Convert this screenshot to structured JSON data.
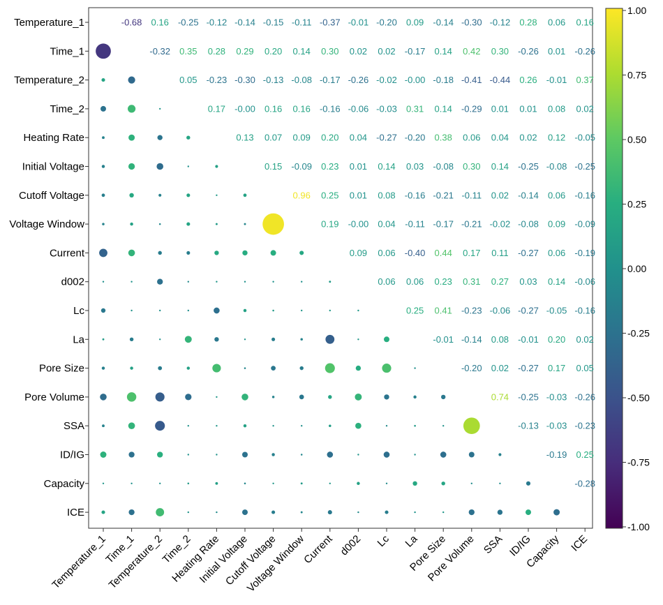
{
  "chart_data": {
    "type": "heatmap",
    "title": "",
    "variables": [
      "Temperature_1",
      "Time_1",
      "Temperature_2",
      "Time_2",
      "Heating Rate",
      "Initial Voltage",
      "Cutoff Voltage",
      "Voltage Window",
      "Current",
      "d002",
      "Lc",
      "La",
      "Pore Size",
      "Pore Volume",
      "SSA",
      "ID/IG",
      "Capacity",
      "ICE"
    ],
    "upper_labels": [
      [
        "",
        "-0.68",
        "0.16",
        "-0.25",
        "-0.12",
        "-0.14",
        "-0.15",
        "-0.11",
        "-0.37",
        "-0.01",
        "-0.20",
        "0.09",
        "-0.14",
        "-0.30",
        "-0.12",
        "0.28",
        "0.06",
        "0.16"
      ],
      [
        "",
        "",
        "-0.32",
        "0.35",
        "0.28",
        "0.29",
        "0.20",
        "0.14",
        "0.30",
        "0.02",
        "0.02",
        "-0.17",
        "0.14",
        "0.42",
        "0.30",
        "-0.26",
        "0.01",
        "-0.26"
      ],
      [
        "",
        "",
        "",
        "0.05",
        "-0.23",
        "-0.30",
        "-0.13",
        "-0.08",
        "-0.17",
        "-0.26",
        "-0.02",
        "-0.00",
        "-0.18",
        "-0.41",
        "-0.44",
        "0.26",
        "-0.01",
        "0.37"
      ],
      [
        "",
        "",
        "",
        "",
        "0.17",
        "-0.00",
        "0.16",
        "0.16",
        "-0.16",
        "-0.06",
        "-0.03",
        "0.31",
        "0.14",
        "-0.29",
        "0.01",
        "0.01",
        "0.08",
        "0.02"
      ],
      [
        "",
        "",
        "",
        "",
        "",
        "0.13",
        "0.07",
        "0.09",
        "0.20",
        "0.04",
        "-0.27",
        "-0.20",
        "0.38",
        "0.06",
        "0.04",
        "0.02",
        "0.12",
        "-0.05"
      ],
      [
        "",
        "",
        "",
        "",
        "",
        "",
        "0.15",
        "-0.09",
        "0.23",
        "0.01",
        "0.14",
        "0.03",
        "-0.08",
        "0.30",
        "0.14",
        "-0.25",
        "-0.08",
        "-0.25"
      ],
      [
        "",
        "",
        "",
        "",
        "",
        "",
        "",
        "0.96",
        "0.25",
        "0.01",
        "0.08",
        "-0.16",
        "-0.21",
        "-0.11",
        "0.02",
        "-0.14",
        "0.06",
        "-0.16"
      ],
      [
        "",
        "",
        "",
        "",
        "",
        "",
        "",
        "",
        "0.19",
        "-0.00",
        "0.04",
        "-0.11",
        "-0.17",
        "-0.21",
        "-0.02",
        "-0.08",
        "0.09",
        "-0.09"
      ],
      [
        "",
        "",
        "",
        "",
        "",
        "",
        "",
        "",
        "",
        "0.09",
        "0.06",
        "-0.40",
        "0.44",
        "0.17",
        "0.11",
        "-0.27",
        "0.06",
        "-0.19"
      ],
      [
        "",
        "",
        "",
        "",
        "",
        "",
        "",
        "",
        "",
        "",
        "0.06",
        "0.06",
        "0.23",
        "0.31",
        "0.27",
        "0.03",
        "0.14",
        "-0.06"
      ],
      [
        "",
        "",
        "",
        "",
        "",
        "",
        "",
        "",
        "",
        "",
        "",
        "0.25",
        "0.41",
        "-0.23",
        "-0.06",
        "-0.27",
        "-0.05",
        "-0.16"
      ],
      [
        "",
        "",
        "",
        "",
        "",
        "",
        "",
        "",
        "",
        "",
        "",
        "",
        "-0.01",
        "-0.14",
        "0.08",
        "-0.01",
        "0.20",
        "0.02"
      ],
      [
        "",
        "",
        "",
        "",
        "",
        "",
        "",
        "",
        "",
        "",
        "",
        "",
        "",
        "-0.20",
        "0.02",
        "-0.27",
        "0.17",
        "0.05"
      ],
      [
        "",
        "",
        "",
        "",
        "",
        "",
        "",
        "",
        "",
        "",
        "",
        "",
        "",
        "",
        "0.74",
        "-0.25",
        "-0.03",
        "-0.26"
      ],
      [
        "",
        "",
        "",
        "",
        "",
        "",
        "",
        "",
        "",
        "",
        "",
        "",
        "",
        "",
        "",
        "-0.13",
        "-0.03",
        "-0.23"
      ],
      [
        "",
        "",
        "",
        "",
        "",
        "",
        "",
        "",
        "",
        "",
        "",
        "",
        "",
        "",
        "",
        "",
        "-0.19",
        "0.25"
      ],
      [
        "",
        "",
        "",
        "",
        "",
        "",
        "",
        "",
        "",
        "",
        "",
        "",
        "",
        "",
        "",
        "",
        "",
        "-0.28"
      ],
      [
        "",
        "",
        "",
        "",
        "",
        "",
        "",
        "",
        "",
        "",
        "",
        "",
        "",
        "",
        "",
        "",
        "",
        ""
      ]
    ],
    "colorbar": {
      "range": [
        -1,
        1
      ],
      "ticks": [
        "-1.00",
        "-0.75",
        "-0.50",
        "-0.25",
        "0.00",
        "0.25",
        "0.50",
        "0.75",
        "1.00"
      ],
      "colormap": "viridis"
    },
    "lower_display": "circles sized by absolute correlation",
    "upper_display": "numeric labels",
    "diagonal": "blank"
  }
}
